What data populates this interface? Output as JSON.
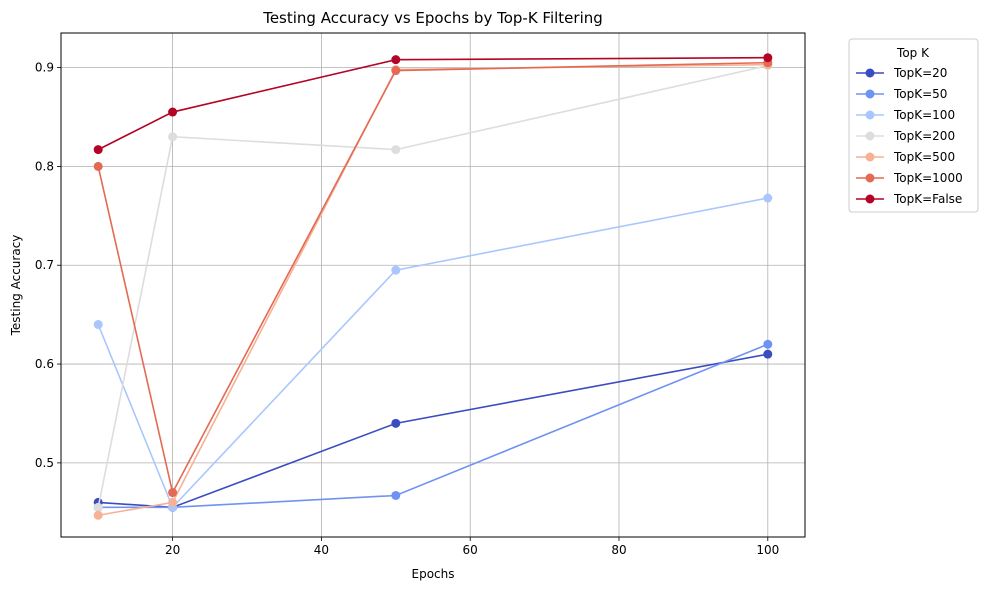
{
  "chart_data": {
    "type": "line",
    "title": "Testing Accuracy vs Epochs by Top-K Filtering",
    "xlabel": "Epochs",
    "ylabel": "Testing Accuracy",
    "xlim": [
      5,
      105
    ],
    "ylim": [
      0.425,
      0.935
    ],
    "xticks": [
      20,
      40,
      60,
      80,
      100
    ],
    "yticks": [
      0.5,
      0.6,
      0.7,
      0.8,
      0.9
    ],
    "grid": true,
    "legend_title": "Top K",
    "legend_position": "outside-top-right",
    "x": [
      10,
      20,
      50,
      100
    ],
    "series": [
      {
        "name": "TopK=20",
        "color": "#3b4cc0",
        "values": [
          0.46,
          0.455,
          0.54,
          0.61
        ]
      },
      {
        "name": "TopK=50",
        "color": "#7092f3",
        "values": [
          0.455,
          0.455,
          0.467,
          0.62
        ]
      },
      {
        "name": "TopK=100",
        "color": "#aac7fd",
        "values": [
          0.64,
          0.455,
          0.695,
          0.768
        ]
      },
      {
        "name": "TopK=200",
        "color": "#dddddd",
        "values": [
          0.455,
          0.83,
          0.817,
          0.902
        ]
      },
      {
        "name": "TopK=500",
        "color": "#f7b194",
        "values": [
          0.447,
          0.46,
          0.898,
          0.903
        ]
      },
      {
        "name": "TopK=1000",
        "color": "#e36a53",
        "values": [
          0.8,
          0.47,
          0.897,
          0.905
        ]
      },
      {
        "name": "TopK=False",
        "color": "#b40426",
        "values": [
          0.817,
          0.855,
          0.908,
          0.91
        ]
      }
    ]
  }
}
